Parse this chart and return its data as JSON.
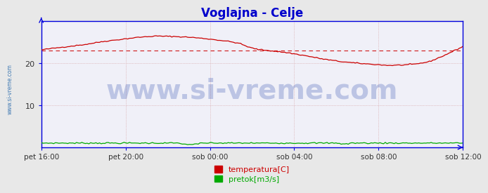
{
  "title": "Voglajna - Celje",
  "title_color": "#0000cc",
  "title_fontsize": 12,
  "bg_color": "#e8e8e8",
  "plot_bg_color": "#f0f0f8",
  "axis_color": "#0000dd",
  "grid_color": "#d09090",
  "ylim": [
    0,
    30
  ],
  "yticks": [
    10,
    20
  ],
  "xtick_labels": [
    "pet 16:00",
    "pet 20:00",
    "sob 00:00",
    "sob 04:00",
    "sob 08:00",
    "sob 12:00"
  ],
  "n_points": 240,
  "temp_color": "#cc0000",
  "flow_color": "#00aa00",
  "avg_line_color": "#cc0000",
  "avg_value": 23.0,
  "watermark": "www.si-vreme.com",
  "watermark_color": "#2244aa",
  "watermark_alpha": 0.25,
  "watermark_fontsize": 28,
  "legend_items": [
    "temperatura[C]",
    "pretok[m3/s]"
  ],
  "legend_colors": [
    "#cc0000",
    "#00aa00"
  ],
  "side_label": "www.si-vreme.com",
  "side_label_color": "#2266aa"
}
